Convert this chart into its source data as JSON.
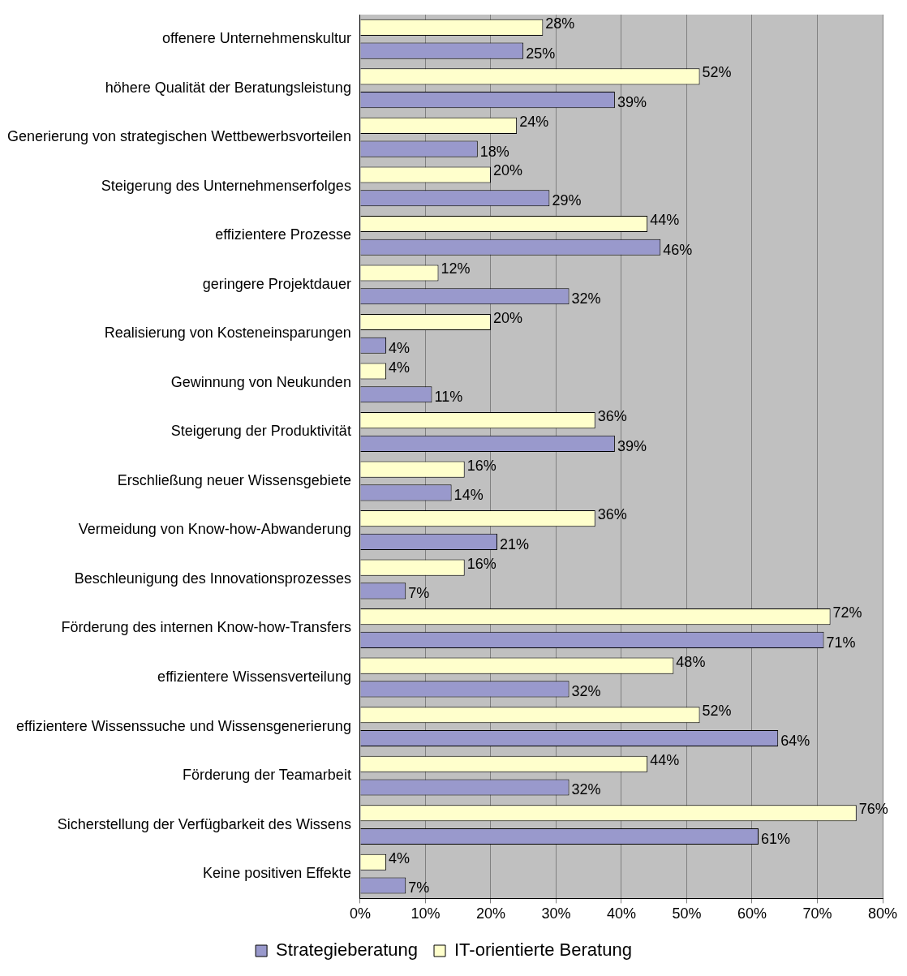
{
  "chart_data": {
    "type": "bar",
    "orientation": "horizontal",
    "categories": [
      "offenere Unternehmenskultur",
      "höhere Qualität der Beratungsleistung",
      "Generierung von strategischen Wettbewerbsvorteilen",
      "Steigerung des Unternehmenserfolges",
      "effizientere Prozesse",
      "geringere Projektdauer",
      "Realisierung von Kosteneinsparungen",
      "Gewinnung von Neukunden",
      "Steigerung der Produktivität",
      "Erschließung neuer Wissensgebiete",
      "Vermeidung von Know-how-Abwanderung",
      "Beschleunigung des Innovationsprozesses",
      "Förderung des internen Know-how-Transfers",
      "effizientere Wissensverteilung",
      "effizientere Wissenssuche und Wissensgenerierung",
      "Förderung der Teamarbeit",
      "Sicherstellung der Verfügbarkeit des Wissens",
      "Keine positiven Effekte"
    ],
    "series": [
      {
        "name": "Strategieberatung",
        "color": "#9999cc",
        "values": [
          25,
          39,
          18,
          29,
          46,
          32,
          4,
          11,
          39,
          14,
          21,
          7,
          71,
          32,
          64,
          32,
          61,
          7
        ],
        "value_labels": [
          "25%",
          "39%",
          "18%",
          "29%",
          "46%",
          "32%",
          "4%",
          "11%",
          "39%",
          "14%",
          "21%",
          "7%",
          "71%",
          "32%",
          "64%",
          "32%",
          "61%",
          "7%"
        ]
      },
      {
        "name": "IT-orientierte Beratung",
        "color": "#ffffcc",
        "values": [
          28,
          52,
          24,
          20,
          44,
          12,
          20,
          4,
          36,
          16,
          36,
          16,
          72,
          48,
          52,
          44,
          76,
          4
        ],
        "value_labels": [
          "28%",
          "52%",
          "24%",
          "20%",
          "44%",
          "12%",
          "20%",
          "4%",
          "36%",
          "16%",
          "36%",
          "16%",
          "72%",
          "48%",
          "52%",
          "44%",
          "76%",
          "4%"
        ]
      }
    ],
    "xlim": [
      0,
      80
    ],
    "xticks": [
      {
        "value": 0,
        "label": "0%"
      },
      {
        "value": 10,
        "label": "10%"
      },
      {
        "value": 20,
        "label": "20%"
      },
      {
        "value": 30,
        "label": "30%"
      },
      {
        "value": 40,
        "label": "40%"
      },
      {
        "value": 50,
        "label": "50%"
      },
      {
        "value": 60,
        "label": "60%"
      },
      {
        "value": 70,
        "label": "70%"
      },
      {
        "value": 80,
        "label": "80%"
      }
    ],
    "grid": "x",
    "legend": "bottom"
  }
}
